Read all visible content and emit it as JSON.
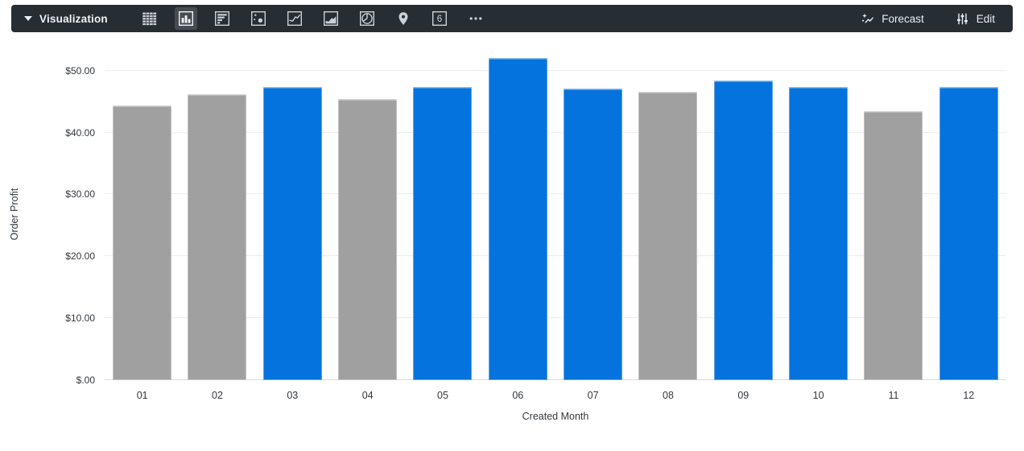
{
  "toolbar": {
    "label": "Visualization",
    "selected_icon": "column-chart",
    "icons": [
      {
        "name": "table",
        "selected": false
      },
      {
        "name": "column-chart",
        "selected": true
      },
      {
        "name": "bar-chart",
        "selected": false
      },
      {
        "name": "scatter-chart",
        "selected": false
      },
      {
        "name": "line-chart",
        "selected": false
      },
      {
        "name": "area-chart",
        "selected": false
      },
      {
        "name": "pie-chart",
        "selected": false
      },
      {
        "name": "map",
        "selected": false
      },
      {
        "name": "single-value",
        "selected": false
      },
      {
        "name": "more-options",
        "selected": false
      }
    ],
    "single_value_glyph": "6",
    "forecast_label": "Forecast",
    "edit_label": "Edit",
    "bar_background": "#262d33",
    "selected_tile_background": "#454c52",
    "icon_color": "#cdd1d5"
  },
  "chart_data": {
    "type": "bar",
    "xlabel": "Created Month",
    "ylabel": "Order Profit",
    "categories": [
      "01",
      "02",
      "03",
      "04",
      "05",
      "06",
      "07",
      "08",
      "09",
      "10",
      "11",
      "12"
    ],
    "values": [
      44.4,
      46.2,
      47.4,
      45.4,
      47.4,
      52.1,
      47.1,
      46.6,
      48.4,
      47.3,
      43.5,
      47.3
    ],
    "color_keys": [
      "gray",
      "gray",
      "blue",
      "gray",
      "blue",
      "blue",
      "blue",
      "gray",
      "blue",
      "blue",
      "gray",
      "blue"
    ],
    "palette": {
      "blue": "#0573de",
      "gray": "#a0a0a0"
    },
    "ylim": [
      0,
      53.6
    ],
    "yticks": [
      0,
      10,
      20,
      30,
      40,
      50
    ],
    "ytick_labels": [
      "$.00",
      "$10.00",
      "$20.00",
      "$30.00",
      "$40.00",
      "$50.00"
    ],
    "grid": true,
    "gridline_color": "#ececec",
    "legend": "none"
  }
}
